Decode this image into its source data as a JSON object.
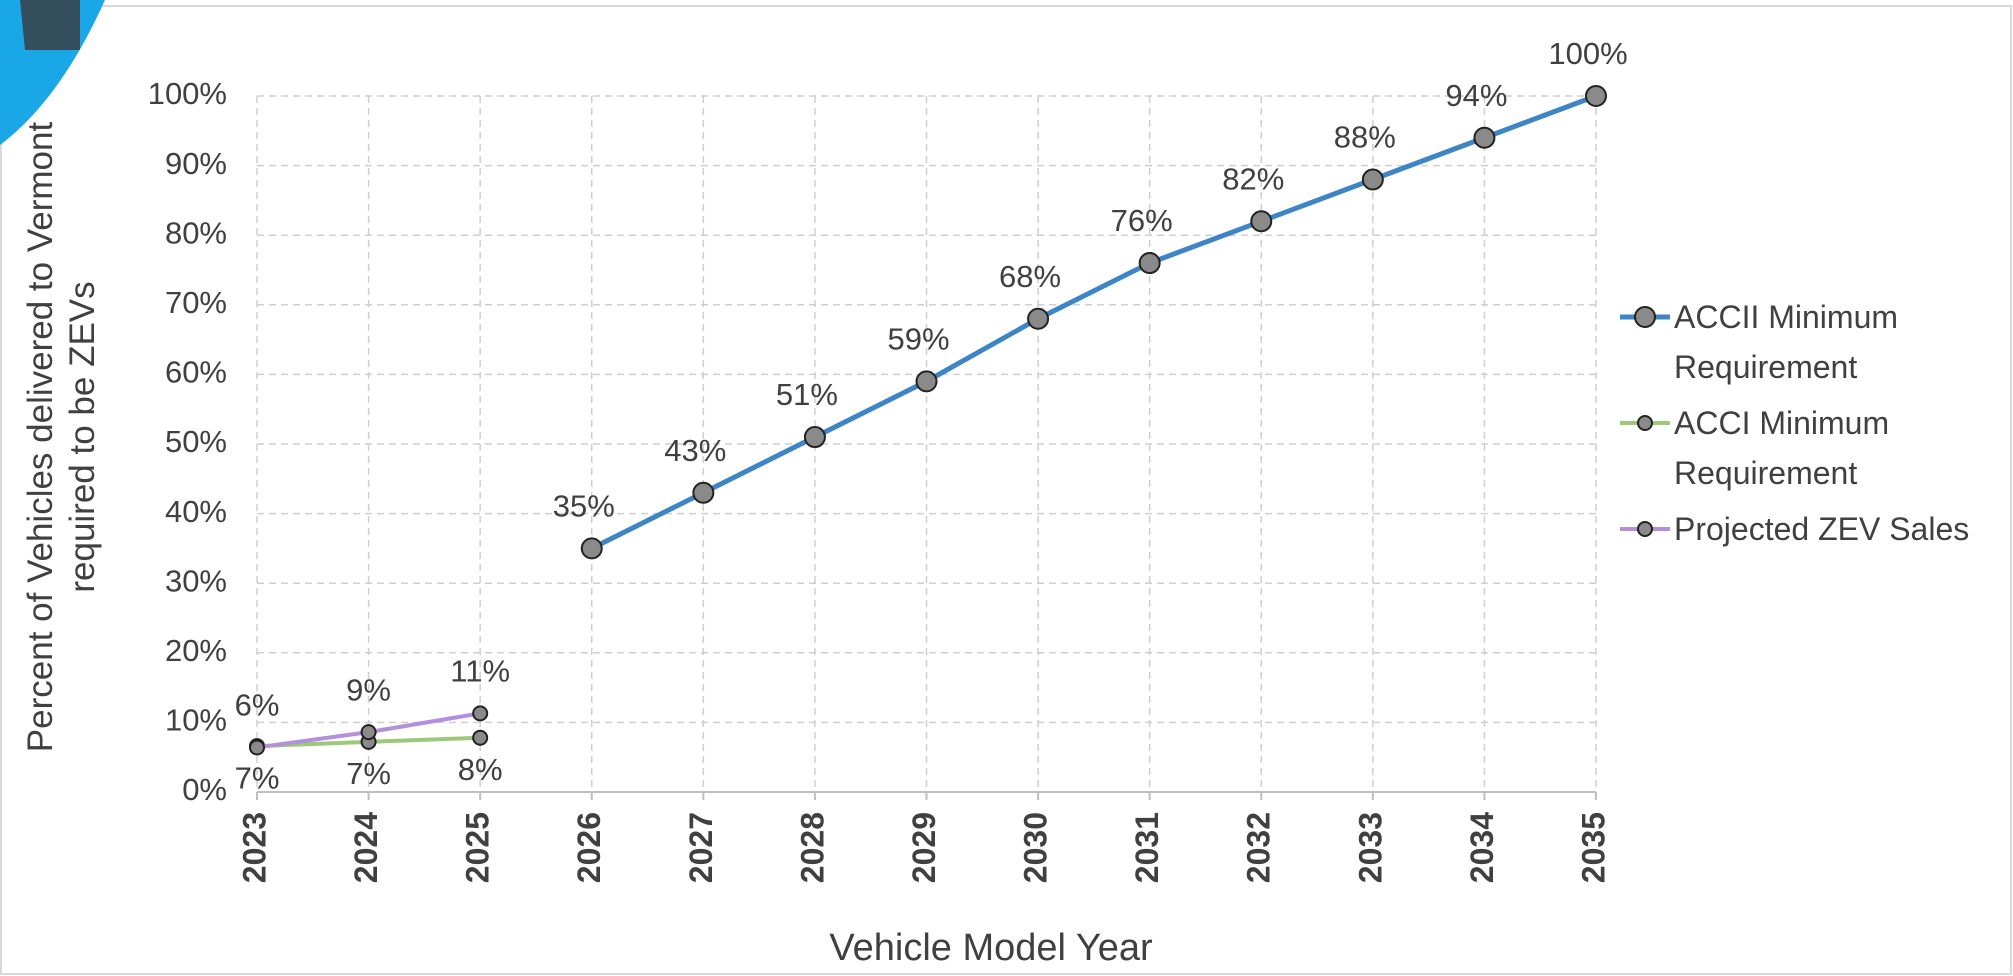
{
  "chart_data": {
    "type": "line",
    "x_label": "Vehicle Model Year",
    "y_label": "Percent of Vehicles delivered to Vermont required to be ZEVs",
    "categories": [
      "2023",
      "2024",
      "2025",
      "2026",
      "2027",
      "2028",
      "2029",
      "2030",
      "2031",
      "2032",
      "2033",
      "2034",
      "2035"
    ],
    "ylim": [
      0,
      100
    ],
    "yticks": [
      {
        "value": 0,
        "label": "0%"
      },
      {
        "value": 10,
        "label": "10%"
      },
      {
        "value": 20,
        "label": "20%"
      },
      {
        "value": 30,
        "label": "30%"
      },
      {
        "value": 40,
        "label": "40%"
      },
      {
        "value": 50,
        "label": "50%"
      },
      {
        "value": 60,
        "label": "60%"
      },
      {
        "value": 70,
        "label": "70%"
      },
      {
        "value": 80,
        "label": "80%"
      },
      {
        "value": 90,
        "label": "90%"
      },
      {
        "value": 100,
        "label": "100%"
      }
    ],
    "grid": true,
    "legend": "right",
    "series": [
      {
        "name": "ACCII Minimum Requirement",
        "color": "#3d85c6",
        "values": [
          null,
          null,
          null,
          35,
          43,
          51,
          59,
          68,
          76,
          82,
          88,
          94,
          100
        ],
        "value_labels": [
          null,
          null,
          null,
          "35%",
          "43%",
          "51%",
          "59%",
          "68%",
          "76%",
          "82%",
          "88%",
          "94%",
          "100%"
        ]
      },
      {
        "name": "ACCI Minimum Requirement",
        "color": "#9cc87a",
        "values": [
          6.6,
          7.2,
          7.8,
          null,
          null,
          null,
          null,
          null,
          null,
          null,
          null,
          null,
          null
        ],
        "value_labels": [
          "7%",
          "7%",
          "8%",
          null,
          null,
          null,
          null,
          null,
          null,
          null,
          null,
          null,
          null
        ]
      },
      {
        "name": "Projected ZEV Sales",
        "color": "#b48fdc",
        "values": [
          6.4,
          8.6,
          11.3,
          null,
          null,
          null,
          null,
          null,
          null,
          null,
          null,
          null,
          null
        ],
        "value_labels": [
          "6%",
          "9%",
          "11%",
          null,
          null,
          null,
          null,
          null,
          null,
          null,
          null,
          null,
          null
        ]
      }
    ]
  }
}
